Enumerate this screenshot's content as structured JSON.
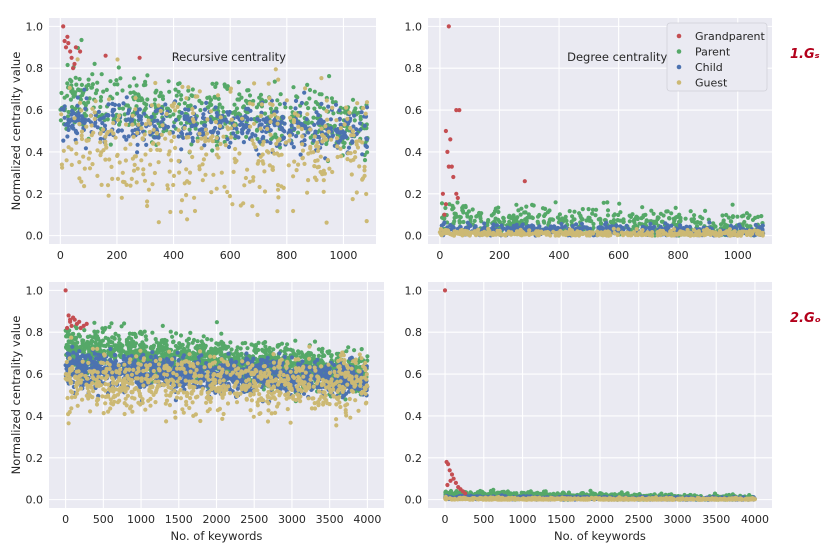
{
  "legend": {
    "items": [
      {
        "key": "grandparent",
        "label": "Grandparent",
        "color": "#c44e52"
      },
      {
        "key": "parent",
        "label": "Parent",
        "color": "#55a868"
      },
      {
        "key": "child",
        "label": "Child",
        "color": "#4c72b0"
      },
      {
        "key": "guest",
        "label": "Guest",
        "color": "#ccb974"
      }
    ]
  },
  "row_labels": [
    "1.Gₛ",
    "2.Gₒ"
  ],
  "chart_data": [
    {
      "id": "rs",
      "type": "scatter",
      "title": "Recursive centrality",
      "xlabel": "",
      "ylabel": "Normalized centrality value",
      "xlim": [
        -40,
        1115
      ],
      "ylim": [
        -0.04,
        1.04
      ],
      "xticks": [
        0,
        200,
        400,
        600,
        800,
        1000
      ],
      "yticks": [
        0.0,
        0.2,
        0.4,
        0.6,
        0.8,
        1.0
      ],
      "xtick_labels": [
        "0",
        "200",
        "400",
        "600",
        "800",
        "1000"
      ],
      "ytick_labels": [
        "0.0",
        "0.2",
        "0.4",
        "0.6",
        "0.8",
        "1.0"
      ],
      "xmax": 1085,
      "series": [
        {
          "name": "Grandparent",
          "points": [
            [
              10,
              1.0
            ],
            [
              15,
              0.93
            ],
            [
              20,
              0.9
            ],
            [
              28,
              0.92
            ],
            [
              35,
              0.88
            ],
            [
              40,
              0.85
            ],
            [
              45,
              0.8
            ],
            [
              55,
              0.9
            ],
            [
              70,
              0.88
            ],
            [
              160,
              0.86
            ],
            [
              280,
              0.85
            ],
            [
              50,
              0.82
            ],
            [
              25,
              0.95
            ]
          ],
          "gen": {
            "n": 0
          }
        },
        {
          "name": "Parent",
          "gen": {
            "n": 520,
            "x0": 0,
            "x1": 1085,
            "c0": 0.66,
            "c1": 0.52,
            "s": 0.08,
            "seed": 11
          }
        },
        {
          "name": "Child",
          "gen": {
            "n": 480,
            "x0": 0,
            "x1": 1085,
            "c0": 0.56,
            "c1": 0.5,
            "s": 0.05,
            "seed": 23
          }
        },
        {
          "name": "Guest",
          "gen": {
            "n": 420,
            "x0": 0,
            "x1": 1085,
            "c0": 0.42,
            "c1": 0.4,
            "s": 0.14,
            "seed": 37
          }
        }
      ]
    },
    {
      "id": "ds",
      "type": "scatter",
      "title": "Degree centrality",
      "xlabel": "",
      "ylabel": "",
      "xlim": [
        -40,
        1115
      ],
      "ylim": [
        -0.04,
        1.04
      ],
      "xticks": [
        0,
        200,
        400,
        600,
        800,
        1000
      ],
      "yticks": [
        0.0,
        0.2,
        0.4,
        0.6,
        0.8,
        1.0
      ],
      "xtick_labels": [
        "0",
        "200",
        "400",
        "600",
        "800",
        "1000"
      ],
      "ytick_labels": [
        "0.0",
        "0.2",
        "0.4",
        "0.6",
        "0.8",
        "1.0"
      ],
      "xmax": 1085,
      "legend": true,
      "series": [
        {
          "name": "Grandparent",
          "points": [
            [
              30,
              1.0
            ],
            [
              55,
              0.6
            ],
            [
              65,
              0.6
            ],
            [
              20,
              0.5
            ],
            [
              35,
              0.46
            ],
            [
              25,
              0.4
            ],
            [
              30,
              0.33
            ],
            [
              40,
              0.33
            ],
            [
              45,
              0.28
            ],
            [
              10,
              0.2
            ],
            [
              55,
              0.2
            ],
            [
              285,
              0.26
            ],
            [
              60,
              0.18
            ],
            [
              20,
              0.15
            ],
            [
              15,
              0.1
            ]
          ],
          "gen": {
            "n": 0
          }
        },
        {
          "name": "Parent",
          "gen": {
            "n": 520,
            "x0": 0,
            "x1": 1085,
            "c0": 0.08,
            "c1": 0.03,
            "s": 0.04,
            "seed": 41,
            "min": 0.0
          }
        },
        {
          "name": "Child",
          "gen": {
            "n": 420,
            "x0": 0,
            "x1": 1085,
            "c0": 0.03,
            "c1": 0.02,
            "s": 0.015,
            "seed": 53,
            "min": 0.0
          }
        },
        {
          "name": "Guest",
          "gen": {
            "n": 420,
            "x0": 0,
            "x1": 1085,
            "c0": 0.01,
            "c1": 0.01,
            "s": 0.008,
            "seed": 67,
            "min": 0.0
          }
        }
      ]
    },
    {
      "id": "ro",
      "type": "scatter",
      "title": "",
      "xlabel": "No. of keywords",
      "ylabel": "Normalized centrality value",
      "xlim": [
        -220,
        4220
      ],
      "ylim": [
        -0.04,
        1.04
      ],
      "xticks": [
        0,
        500,
        1000,
        1500,
        2000,
        2500,
        3000,
        3500,
        4000
      ],
      "yticks": [
        0.0,
        0.2,
        0.4,
        0.6,
        0.8,
        1.0
      ],
      "xtick_labels": [
        "0",
        "500",
        "1000",
        "1500",
        "2000",
        "2500",
        "3000",
        "3500",
        "4000"
      ],
      "ytick_labels": [
        "0.0",
        "0.2",
        "0.4",
        "0.6",
        "0.8",
        "1.0"
      ],
      "xmax": 4000,
      "series": [
        {
          "name": "Grandparent",
          "points": [
            [
              0,
              1.0
            ],
            [
              40,
              0.88
            ],
            [
              60,
              0.85
            ],
            [
              80,
              0.83
            ],
            [
              100,
              0.87
            ],
            [
              120,
              0.86
            ],
            [
              150,
              0.84
            ],
            [
              180,
              0.85
            ],
            [
              200,
              0.82
            ],
            [
              240,
              0.83
            ],
            [
              280,
              0.84
            ],
            [
              20,
              0.82
            ],
            [
              60,
              0.86
            ]
          ],
          "gen": {
            "n": 0
          }
        },
        {
          "name": "Parent",
          "gen": {
            "n": 1700,
            "x0": 0,
            "x1": 4000,
            "c0": 0.72,
            "c1": 0.6,
            "s": 0.05,
            "seed": 71
          }
        },
        {
          "name": "Child",
          "gen": {
            "n": 1300,
            "x0": 0,
            "x1": 4000,
            "c0": 0.62,
            "c1": 0.57,
            "s": 0.04,
            "seed": 83
          }
        },
        {
          "name": "Guest",
          "gen": {
            "n": 800,
            "x0": 0,
            "x1": 4000,
            "c0": 0.56,
            "c1": 0.55,
            "s": 0.07,
            "seed": 97
          }
        }
      ]
    },
    {
      "id": "do",
      "type": "scatter",
      "title": "",
      "xlabel": "No. of keywords",
      "ylabel": "",
      "xlim": [
        -220,
        4220
      ],
      "ylim": [
        -0.04,
        1.04
      ],
      "xticks": [
        0,
        500,
        1000,
        1500,
        2000,
        2500,
        3000,
        3500,
        4000
      ],
      "yticks": [
        0.0,
        0.2,
        0.4,
        0.6,
        0.8,
        1.0
      ],
      "xtick_labels": [
        "0",
        "500",
        "1000",
        "1500",
        "2000",
        "2500",
        "3000",
        "3500",
        "4000"
      ],
      "ytick_labels": [
        "0.0",
        "0.2",
        "0.4",
        "0.6",
        "0.8",
        "1.0"
      ],
      "xmax": 4000,
      "series": [
        {
          "name": "Grandparent",
          "points": [
            [
              0,
              1.0
            ],
            [
              20,
              0.18
            ],
            [
              40,
              0.17
            ],
            [
              60,
              0.14
            ],
            [
              90,
              0.12
            ],
            [
              110,
              0.1
            ],
            [
              140,
              0.08
            ],
            [
              170,
              0.06
            ],
            [
              200,
              0.05
            ],
            [
              230,
              0.04
            ],
            [
              70,
              0.09
            ],
            [
              30,
              0.07
            ],
            [
              260,
              0.03
            ]
          ],
          "gen": {
            "n": 0
          }
        },
        {
          "name": "Parent",
          "gen": {
            "n": 900,
            "x0": 0,
            "x1": 4000,
            "c0": 0.025,
            "c1": 0.003,
            "s": 0.008,
            "seed": 101,
            "min": 0.0
          }
        },
        {
          "name": "Child",
          "gen": {
            "n": 700,
            "x0": 0,
            "x1": 4000,
            "c0": 0.01,
            "c1": 0.002,
            "s": 0.004,
            "seed": 113,
            "min": 0.0
          }
        },
        {
          "name": "Guest",
          "gen": {
            "n": 600,
            "x0": 0,
            "x1": 4000,
            "c0": 0.004,
            "c1": 0.001,
            "s": 0.003,
            "seed": 127,
            "min": 0.0
          }
        }
      ]
    }
  ]
}
